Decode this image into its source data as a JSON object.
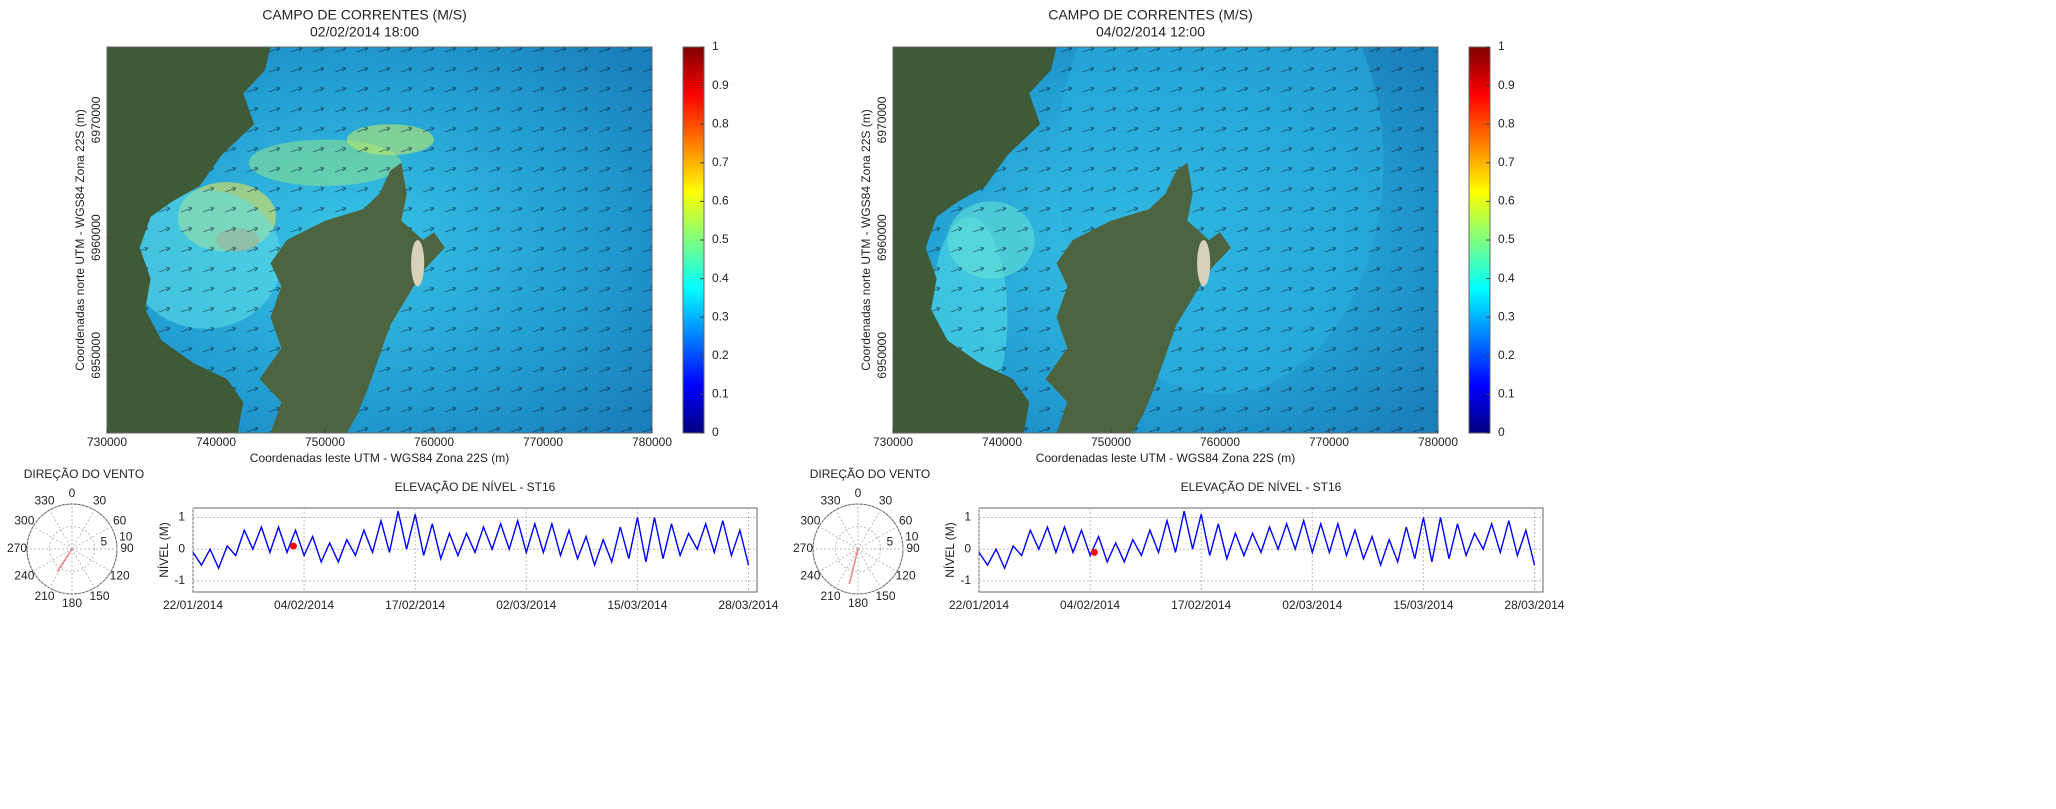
{
  "chart_data": [
    {
      "type": "map",
      "title": "CAMPO DE CORRENTES (M/S)",
      "subtitle": "02/02/2014 18:00",
      "xlabel": "Coordenadas leste UTM - WGS84 Zona 22S (m)",
      "ylabel": "Coordenadas norte UTM - WGS84 Zona 22S (m)",
      "xlim": [
        730000,
        780000
      ],
      "xticks": [
        730000,
        740000,
        750000,
        760000,
        770000,
        780000
      ],
      "ylim": [
        6943400,
        6976200
      ],
      "yticks": [
        6950000,
        6960000,
        6970000
      ],
      "colorbar": {
        "ylim": [
          0,
          1
        ],
        "yticks": [
          0,
          0.1,
          0.2,
          0.3,
          0.4,
          0.5,
          0.6,
          0.7,
          0.8,
          0.9,
          1
        ],
        "colors": [
          "#00007f",
          "#0000ff",
          "#007fff",
          "#00ffff",
          "#7fff7f",
          "#ffff00",
          "#ff7f00",
          "#ff0000",
          "#7f0000"
        ]
      }
    },
    {
      "type": "polar",
      "title": "DIREÇÃO DO VENTO",
      "thetaticks": [
        0,
        30,
        60,
        90,
        120,
        150,
        180,
        210,
        240,
        270,
        300,
        330
      ],
      "rlim": [
        0,
        10
      ],
      "rticks": [
        5,
        10
      ],
      "series": [
        {
          "color": "#f08080",
          "theta": [
            213
          ],
          "values": [
            6
          ]
        }
      ]
    },
    {
      "type": "line",
      "title": "ELEVAÇÃO DE NÍVEL - ST16",
      "ylabel": "NÍVEL (M)",
      "x": [
        "22/01/2014",
        "23/01/2014",
        "24/01/2014",
        "25/01/2014",
        "26/01/2014",
        "27/01/2014",
        "28/01/2014",
        "29/01/2014",
        "30/01/2014",
        "31/01/2014",
        "01/02/2014",
        "02/02/2014",
        "03/02/2014",
        "04/02/2014",
        "05/02/2014",
        "06/02/2014",
        "07/02/2014",
        "08/02/2014",
        "09/02/2014",
        "10/02/2014",
        "11/02/2014",
        "12/02/2014",
        "13/02/2014",
        "14/02/2014",
        "15/02/2014",
        "16/02/2014",
        "17/02/2014",
        "18/02/2014",
        "19/02/2014",
        "20/02/2014",
        "21/02/2014",
        "22/02/2014",
        "23/02/2014",
        "24/02/2014",
        "25/02/2014",
        "26/02/2014",
        "27/02/2014",
        "28/02/2014",
        "01/03/2014",
        "02/03/2014",
        "03/03/2014",
        "04/03/2014",
        "05/03/2014",
        "06/03/2014",
        "07/03/2014",
        "08/03/2014",
        "09/03/2014",
        "10/03/2014",
        "11/03/2014",
        "12/03/2014",
        "13/03/2014",
        "14/03/2014",
        "15/03/2014",
        "16/03/2014",
        "17/03/2014",
        "18/03/2014",
        "19/03/2014",
        "20/03/2014",
        "21/03/2014",
        "22/03/2014",
        "23/03/2014",
        "24/03/2014",
        "25/03/2014",
        "26/03/2014",
        "27/03/2014",
        "28/03/2014"
      ],
      "xlim": [
        "22/01/2014",
        "29/03/2014"
      ],
      "xticks": [
        "22/01/2014",
        "04/02/2014",
        "17/02/2014",
        "02/03/2014",
        "15/03/2014",
        "28/03/2014"
      ],
      "ylim": [
        -1.35,
        1.3
      ],
      "yticks": [
        -1,
        0,
        1
      ],
      "grid": true,
      "series": [
        {
          "color": "#0000ff",
          "values": [
            -0.1,
            -0.5,
            0.0,
            -0.6,
            0.1,
            -0.2,
            0.6,
            0.0,
            0.7,
            -0.1,
            0.7,
            -0.1,
            0.6,
            -0.2,
            0.4,
            -0.4,
            0.2,
            -0.4,
            0.3,
            -0.2,
            0.6,
            -0.1,
            0.9,
            -0.1,
            1.2,
            0.0,
            1.1,
            -0.2,
            0.8,
            -0.3,
            0.5,
            -0.2,
            0.5,
            -0.1,
            0.7,
            0.0,
            0.8,
            0.0,
            0.9,
            -0.1,
            0.8,
            -0.1,
            0.8,
            -0.2,
            0.6,
            -0.3,
            0.4,
            -0.5,
            0.3,
            -0.4,
            0.7,
            -0.3,
            1.0,
            -0.4,
            1.0,
            -0.3,
            0.8,
            -0.2,
            0.5,
            0.0,
            0.8,
            -0.1,
            0.9,
            -0.2,
            0.6,
            -0.5
          ]
        },
        {
          "color": "#ff0000",
          "x": [
            "02/02/2014 18:00"
          ],
          "values": [
            0.1
          ]
        }
      ]
    },
    {
      "type": "map",
      "title": "CAMPO DE CORRENTES (M/S)",
      "subtitle": "04/02/2014 12:00",
      "xlabel": "Coordenadas leste UTM - WGS84 Zona 22S (m)",
      "ylabel": "Coordenadas norte UTM - WGS84 Zona 22S (m)",
      "xlim": [
        730000,
        780000
      ],
      "xticks": [
        730000,
        740000,
        750000,
        760000,
        770000,
        780000
      ],
      "ylim": [
        6943400,
        6976200
      ],
      "yticks": [
        6950000,
        6960000,
        6970000
      ],
      "colorbar": {
        "ylim": [
          0,
          1
        ],
        "yticks": [
          0,
          0.1,
          0.2,
          0.3,
          0.4,
          0.5,
          0.6,
          0.7,
          0.8,
          0.9,
          1
        ],
        "colors": [
          "#00007f",
          "#0000ff",
          "#007fff",
          "#00ffff",
          "#7fff7f",
          "#ffff00",
          "#ff7f00",
          "#ff0000",
          "#7f0000"
        ]
      }
    },
    {
      "type": "polar",
      "title": "DIREÇÃO DO VENTO",
      "thetaticks": [
        0,
        30,
        60,
        90,
        120,
        150,
        180,
        210,
        240,
        270,
        300,
        330
      ],
      "rlim": [
        0,
        10
      ],
      "rticks": [
        5,
        10
      ],
      "series": [
        {
          "color": "#f08080",
          "theta": [
            194
          ],
          "values": [
            8
          ]
        }
      ]
    },
    {
      "type": "line",
      "title": "ELEVAÇÃO DE NÍVEL - ST16",
      "ylabel": "NÍVEL (M)",
      "x": [
        "22/01/2014",
        "23/01/2014",
        "24/01/2014",
        "25/01/2014",
        "26/01/2014",
        "27/01/2014",
        "28/01/2014",
        "29/01/2014",
        "30/01/2014",
        "31/01/2014",
        "01/02/2014",
        "02/02/2014",
        "03/02/2014",
        "04/02/2014",
        "05/02/2014",
        "06/02/2014",
        "07/02/2014",
        "08/02/2014",
        "09/02/2014",
        "10/02/2014",
        "11/02/2014",
        "12/02/2014",
        "13/02/2014",
        "14/02/2014",
        "15/02/2014",
        "16/02/2014",
        "17/02/2014",
        "18/02/2014",
        "19/02/2014",
        "20/02/2014",
        "21/02/2014",
        "22/02/2014",
        "23/02/2014",
        "24/02/2014",
        "25/02/2014",
        "26/02/2014",
        "27/02/2014",
        "28/02/2014",
        "01/03/2014",
        "02/03/2014",
        "03/03/2014",
        "04/03/2014",
        "05/03/2014",
        "06/03/2014",
        "07/03/2014",
        "08/03/2014",
        "09/03/2014",
        "10/03/2014",
        "11/03/2014",
        "12/03/2014",
        "13/03/2014",
        "14/03/2014",
        "15/03/2014",
        "16/03/2014",
        "17/03/2014",
        "18/03/2014",
        "19/03/2014",
        "20/03/2014",
        "21/03/2014",
        "22/03/2014",
        "23/03/2014",
        "24/03/2014",
        "25/03/2014",
        "26/03/2014",
        "27/03/2014",
        "28/03/2014"
      ],
      "xlim": [
        "22/01/2014",
        "29/03/2014"
      ],
      "xticks": [
        "22/01/2014",
        "04/02/2014",
        "17/02/2014",
        "02/03/2014",
        "15/03/2014",
        "28/03/2014"
      ],
      "ylim": [
        -1.35,
        1.3
      ],
      "yticks": [
        -1,
        0,
        1
      ],
      "grid": true,
      "series": [
        {
          "color": "#0000ff",
          "values": [
            -0.1,
            -0.5,
            0.0,
            -0.6,
            0.1,
            -0.2,
            0.6,
            0.0,
            0.7,
            -0.1,
            0.7,
            -0.1,
            0.6,
            -0.2,
            0.4,
            -0.4,
            0.2,
            -0.4,
            0.3,
            -0.2,
            0.6,
            -0.1,
            0.9,
            -0.1,
            1.2,
            0.0,
            1.1,
            -0.2,
            0.8,
            -0.3,
            0.5,
            -0.2,
            0.5,
            -0.1,
            0.7,
            0.0,
            0.8,
            0.0,
            0.9,
            -0.1,
            0.8,
            -0.1,
            0.8,
            -0.2,
            0.6,
            -0.3,
            0.4,
            -0.5,
            0.3,
            -0.4,
            0.7,
            -0.3,
            1.0,
            -0.4,
            1.0,
            -0.3,
            0.8,
            -0.2,
            0.5,
            0.0,
            0.8,
            -0.1,
            0.9,
            -0.2,
            0.6,
            -0.5
          ]
        },
        {
          "color": "#ff0000",
          "x": [
            "04/02/2014 12:00"
          ],
          "values": [
            -0.1
          ]
        }
      ]
    }
  ]
}
